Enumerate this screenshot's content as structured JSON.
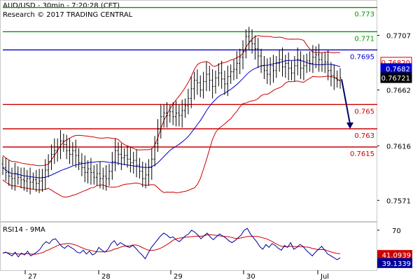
{
  "header": {
    "line1": "AUD/USD - 30min - 7:20:28 (CET)",
    "line2": "Research © 2017 TRADING CENTRAL"
  },
  "colors": {
    "resistance": "#009900",
    "pivot": "#0000cc",
    "support": "#cc0000",
    "candle": "#000000",
    "bollinger": "#cc0000",
    "ma": "#0000cc",
    "rsi": "#000099",
    "rsi_ma": "#cc0000",
    "arrow": "#000066",
    "price_tag_bg": "#000000",
    "ma_tag_bg": "#0000cc",
    "rsi_tag_bg": "#000099",
    "rsi_ma_tag_bg": "#cc0000"
  },
  "chart_data": [
    {
      "type": "candlestick",
      "title": "AUD/USD - 30min - 7:20:28 (CET)",
      "ylim": [
        0.7555,
        0.7735
      ],
      "y_ticks": [
        "0.7707",
        "0.7662",
        "0.7616",
        "0.7571"
      ],
      "x_ticks": [
        "27",
        "28",
        "29",
        "30",
        "Jul"
      ],
      "levels": [
        {
          "label": "0.773",
          "value": 0.773,
          "kind": "resistance"
        },
        {
          "label": "0.771",
          "value": 0.771,
          "kind": "resistance"
        },
        {
          "label": "0.7695",
          "value": 0.7695,
          "kind": "pivot"
        },
        {
          "label": "0.765",
          "value": 0.765,
          "kind": "support"
        },
        {
          "label": "0.763",
          "value": 0.763,
          "kind": "support"
        },
        {
          "label": "0.7615",
          "value": 0.7615,
          "kind": "support"
        }
      ],
      "price_tags": [
        {
          "label": "0.76820",
          "value": 0.7682,
          "kind": "bollinger"
        },
        {
          "label": "0.7682",
          "value": 0.7682,
          "kind": "ma"
        },
        {
          "label": "0.76721",
          "value": 0.76721,
          "kind": "last"
        }
      ],
      "close": [
        0.7598,
        0.7594,
        0.7591,
        0.7589,
        0.7593,
        0.759,
        0.7588,
        0.7587,
        0.7589,
        0.7586,
        0.7588,
        0.7585,
        0.7587,
        0.759,
        0.7596,
        0.7603,
        0.7609,
        0.7612,
        0.7615,
        0.762,
        0.7617,
        0.7612,
        0.7609,
        0.7612,
        0.7608,
        0.7602,
        0.7598,
        0.7594,
        0.7597,
        0.7594,
        0.759,
        0.7593,
        0.7589,
        0.7591,
        0.7589,
        0.7595,
        0.7603,
        0.7612,
        0.7609,
        0.7606,
        0.7608,
        0.7605,
        0.7602,
        0.7604,
        0.76,
        0.7595,
        0.7589,
        0.7592,
        0.7598,
        0.7605,
        0.7618,
        0.763,
        0.764,
        0.7643,
        0.7641,
        0.7644,
        0.764,
        0.7643,
        0.7641,
        0.7645,
        0.7649,
        0.7655,
        0.7663,
        0.767,
        0.7668,
        0.7662,
        0.7669,
        0.7675,
        0.767,
        0.7665,
        0.7672,
        0.7676,
        0.7671,
        0.7667,
        0.7673,
        0.7677,
        0.7679,
        0.7684,
        0.7689,
        0.7694,
        0.7706,
        0.7702,
        0.77,
        0.7696,
        0.769,
        0.7682,
        0.7678,
        0.7675,
        0.7682,
        0.7678,
        0.7684,
        0.7687,
        0.7681,
        0.7684,
        0.768,
        0.7676,
        0.7682,
        0.7687,
        0.768,
        0.7682,
        0.7686,
        0.7684,
        0.7689,
        0.7691,
        0.7687,
        0.7683,
        0.7685,
        0.7678,
        0.7674,
        0.7672,
        0.767,
        0.7672
      ]
    },
    {
      "type": "line",
      "title": "RSI14 - 9MA",
      "ylim": [
        28,
        78
      ],
      "y_ticks": [
        "70"
      ],
      "tags": [
        {
          "label": "41.0939",
          "value": 41.0939,
          "kind": "rsi_ma"
        },
        {
          "label": "39.1339",
          "value": 39.1339,
          "kind": "rsi"
        }
      ],
      "rsi": [
        46,
        47,
        45,
        43,
        47,
        42,
        46,
        44,
        48,
        43,
        45,
        47,
        50,
        55,
        58,
        56,
        60,
        61,
        57,
        53,
        51,
        54,
        52,
        50,
        47,
        46,
        49,
        45,
        48,
        44,
        46,
        52,
        49,
        47,
        50,
        56,
        59,
        54,
        57,
        55,
        53,
        52,
        54,
        51,
        47,
        44,
        40,
        46,
        52,
        56,
        60,
        64,
        67,
        65,
        62,
        63,
        60,
        58,
        61,
        64,
        66,
        70,
        68,
        65,
        61,
        64,
        67,
        63,
        60,
        63,
        66,
        64,
        62,
        59,
        57,
        59,
        62,
        65,
        70,
        72,
        66,
        62,
        58,
        53,
        50,
        55,
        52,
        56,
        54,
        51,
        49,
        54,
        52,
        57,
        50,
        52,
        55,
        53,
        49,
        46,
        43,
        47,
        50,
        53,
        49,
        45,
        43,
        41,
        39,
        41
      ]
    }
  ]
}
